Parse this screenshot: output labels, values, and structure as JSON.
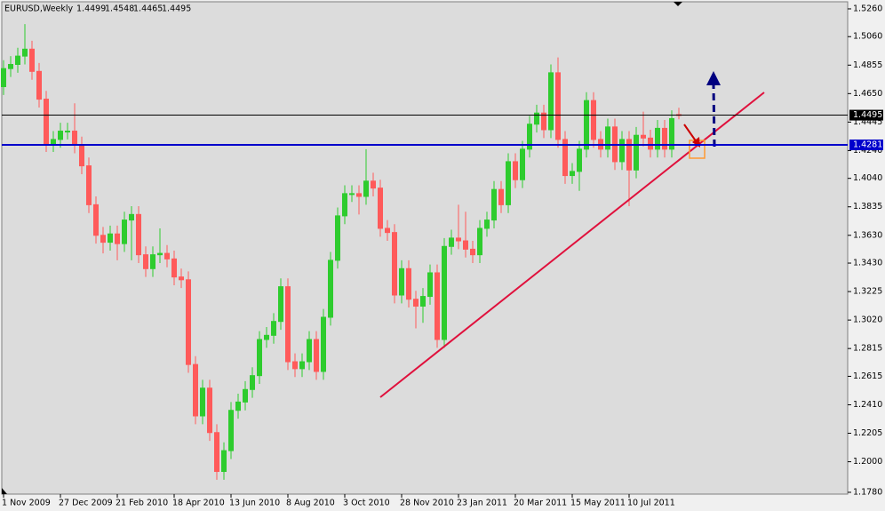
{
  "chart_data": {
    "type": "candlestick",
    "title": "EURUSD,Weekly",
    "categories": [
      "1 Nov 2009",
      null,
      null,
      null,
      null,
      null,
      null,
      null,
      "27 Dec 2009",
      null,
      null,
      null,
      null,
      null,
      null,
      null,
      "21 Feb 2010",
      null,
      null,
      null,
      null,
      null,
      null,
      null,
      "18 Apr 2010",
      null,
      null,
      null,
      null,
      null,
      null,
      null,
      "13 Jun 2010",
      null,
      null,
      null,
      null,
      null,
      null,
      null,
      "8 Aug 2010",
      null,
      null,
      null,
      null,
      null,
      null,
      null,
      "3 Oct 2010",
      null,
      null,
      null,
      null,
      null,
      null,
      null,
      "28 Nov 2010",
      null,
      null,
      null,
      null,
      null,
      null,
      null,
      "23 Jan 2011",
      null,
      null,
      null,
      null,
      null,
      null,
      null,
      "20 Mar 2011",
      null,
      null,
      null,
      null,
      null,
      null,
      null,
      "15 May 2011",
      null,
      null,
      null,
      null,
      null,
      null,
      null,
      "10 Jul 2011",
      null,
      null,
      null,
      null,
      null,
      null,
      null
    ],
    "series": [
      {
        "up_color": "#2ecc2e",
        "down_color": "#ff5a5a",
        "open": [
          1.47,
          1.483,
          1.486,
          1.492,
          1.497,
          1.481,
          1.461,
          1.429,
          1.432,
          1.438,
          1.438,
          1.428,
          1.413,
          1.385,
          1.363,
          1.358,
          1.364,
          1.357,
          1.374,
          1.378,
          1.349,
          1.339,
          1.349,
          1.35,
          1.346,
          1.333,
          1.331,
          1.27,
          1.233,
          1.253,
          1.221,
          1.193,
          1.208,
          1.237,
          1.243,
          1.252,
          1.262,
          1.288,
          1.291,
          1.301,
          1.326,
          1.272,
          1.267,
          1.272,
          1.288,
          1.265,
          1.304,
          1.345,
          1.377,
          1.393,
          1.393,
          1.391,
          1.402,
          1.397,
          1.368,
          1.365,
          1.32,
          1.339,
          1.317,
          1.312,
          1.319,
          1.336,
          1.288,
          1.355,
          1.361,
          1.359,
          1.353,
          1.349,
          1.368,
          1.374,
          1.396,
          1.385,
          1.416,
          1.403,
          1.425,
          1.443,
          1.451,
          1.439,
          1.48,
          1.432,
          1.406,
          1.409,
          1.425,
          1.46,
          1.432,
          1.425,
          1.441,
          1.416,
          1.432,
          1.41,
          1.435,
          1.433,
          1.425,
          1.44,
          1.425,
          1.4499
        ],
        "high": [
          1.489,
          1.492,
          1.498,
          1.515,
          1.503,
          1.487,
          1.467,
          1.438,
          1.444,
          1.444,
          1.458,
          1.434,
          1.419,
          1.391,
          1.369,
          1.37,
          1.37,
          1.38,
          1.384,
          1.384,
          1.355,
          1.355,
          1.368,
          1.356,
          1.352,
          1.339,
          1.337,
          1.276,
          1.259,
          1.259,
          1.227,
          1.214,
          1.243,
          1.249,
          1.258,
          1.268,
          1.294,
          1.297,
          1.307,
          1.332,
          1.332,
          1.278,
          1.278,
          1.294,
          1.294,
          1.31,
          1.351,
          1.383,
          1.399,
          1.399,
          1.399,
          1.425,
          1.408,
          1.403,
          1.374,
          1.371,
          1.345,
          1.345,
          1.323,
          1.325,
          1.342,
          1.342,
          1.361,
          1.367,
          1.385,
          1.38,
          1.359,
          1.374,
          1.38,
          1.402,
          1.402,
          1.422,
          1.422,
          1.431,
          1.449,
          1.457,
          1.457,
          1.486,
          1.491,
          1.438,
          1.415,
          1.431,
          1.466,
          1.466,
          1.438,
          1.447,
          1.447,
          1.438,
          1.438,
          1.441,
          1.452,
          1.439,
          1.446,
          1.446,
          1.453,
          1.4548
        ],
        "low": [
          1.464,
          1.477,
          1.48,
          1.486,
          1.475,
          1.455,
          1.423,
          1.423,
          1.426,
          1.432,
          1.422,
          1.407,
          1.379,
          1.357,
          1.35,
          1.352,
          1.345,
          1.351,
          1.345,
          1.343,
          1.333,
          1.333,
          1.343,
          1.34,
          1.327,
          1.325,
          1.264,
          1.227,
          1.227,
          1.215,
          1.187,
          1.187,
          1.202,
          1.231,
          1.237,
          1.246,
          1.256,
          1.282,
          1.285,
          1.295,
          1.266,
          1.261,
          1.261,
          1.266,
          1.259,
          1.259,
          1.298,
          1.339,
          1.371,
          1.387,
          1.378,
          1.385,
          1.391,
          1.362,
          1.359,
          1.314,
          1.314,
          1.311,
          1.296,
          1.3,
          1.313,
          1.282,
          1.282,
          1.349,
          1.353,
          1.347,
          1.343,
          1.343,
          1.362,
          1.368,
          1.379,
          1.379,
          1.397,
          1.397,
          1.419,
          1.437,
          1.433,
          1.433,
          1.426,
          1.4,
          1.4,
          1.395,
          1.419,
          1.426,
          1.419,
          1.419,
          1.41,
          1.41,
          1.384,
          1.404,
          1.427,
          1.419,
          1.419,
          1.419,
          1.419,
          1.4465
        ],
        "close": [
          1.483,
          1.486,
          1.492,
          1.497,
          1.481,
          1.461,
          1.429,
          1.432,
          1.438,
          1.438,
          1.428,
          1.413,
          1.385,
          1.363,
          1.358,
          1.364,
          1.357,
          1.374,
          1.378,
          1.349,
          1.339,
          1.349,
          1.35,
          1.346,
          1.333,
          1.331,
          1.27,
          1.233,
          1.253,
          1.221,
          1.193,
          1.208,
          1.237,
          1.243,
          1.252,
          1.262,
          1.288,
          1.291,
          1.301,
          1.326,
          1.272,
          1.267,
          1.272,
          1.288,
          1.265,
          1.304,
          1.345,
          1.377,
          1.393,
          1.393,
          1.391,
          1.402,
          1.397,
          1.368,
          1.365,
          1.32,
          1.339,
          1.317,
          1.312,
          1.319,
          1.336,
          1.288,
          1.355,
          1.361,
          1.359,
          1.353,
          1.349,
          1.368,
          1.374,
          1.396,
          1.385,
          1.416,
          1.403,
          1.425,
          1.443,
          1.451,
          1.439,
          1.48,
          1.432,
          1.406,
          1.409,
          1.425,
          1.46,
          1.432,
          1.425,
          1.441,
          1.416,
          1.432,
          1.41,
          1.435,
          1.433,
          1.425,
          1.44,
          1.425,
          1.447,
          1.4495
        ]
      }
    ],
    "hlines": [
      {
        "value": 1.4495,
        "color": "#000000"
      },
      {
        "value": 1.4281,
        "color": "#0000cc"
      }
    ],
    "ylim": [
      1.1767,
      1.5311
    ],
    "yticks": [
      {
        "value": 1.526,
        "label": "1.5260"
      },
      {
        "value": 1.506,
        "label": "1.5060"
      },
      {
        "value": 1.4855,
        "label": "1.4855"
      },
      {
        "value": 1.465,
        "label": "1.4650"
      },
      {
        "value": 1.4445,
        "label": "1.4445"
      },
      {
        "value": 1.424,
        "label": "1.4240"
      },
      {
        "value": 1.404,
        "label": "1.4040"
      },
      {
        "value": 1.3835,
        "label": "1.3835"
      },
      {
        "value": 1.363,
        "label": "1.3630"
      },
      {
        "value": 1.343,
        "label": "1.3430"
      },
      {
        "value": 1.3225,
        "label": "1.3225"
      },
      {
        "value": 1.302,
        "label": "1.3020"
      },
      {
        "value": 1.2815,
        "label": "1.2815"
      },
      {
        "value": 1.2615,
        "label": "1.2615"
      },
      {
        "value": 1.241,
        "label": "1.2410"
      },
      {
        "value": 1.2205,
        "label": "1.2205"
      },
      {
        "value": 1.2,
        "label": "1.2000"
      },
      {
        "value": 1.178,
        "label": "1.1780"
      }
    ]
  }
}
